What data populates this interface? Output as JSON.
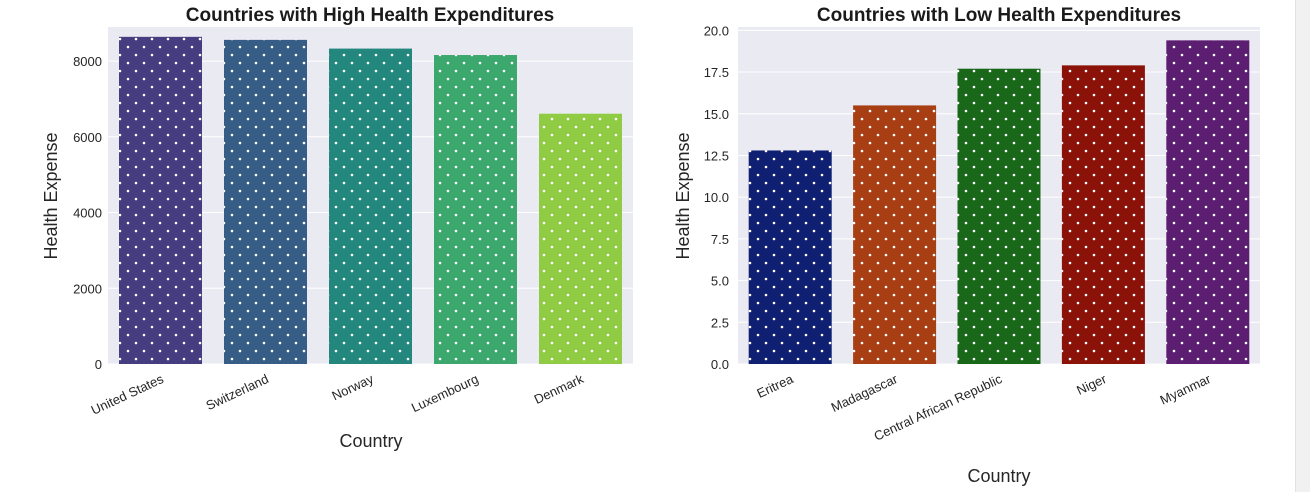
{
  "chart_data": [
    {
      "type": "bar",
      "title": "Countries with High Health Expenditures",
      "xlabel": "Country",
      "ylabel": "Health Expense",
      "categories": [
        "United States",
        "Switzerland",
        "Norway",
        "Luxembourg",
        "Denmark"
      ],
      "values": [
        8640,
        8560,
        8330,
        8160,
        6610
      ],
      "ylim": [
        0,
        8900
      ],
      "yticks": [
        0,
        2000,
        4000,
        6000,
        8000
      ],
      "ytick_labels": [
        "0",
        "2000",
        "4000",
        "6000",
        "8000"
      ],
      "colors": [
        "#463c80",
        "#365d85",
        "#23877e",
        "#3da86d",
        "#8fcb43"
      ],
      "grid": true,
      "pattern": "dots"
    },
    {
      "type": "bar",
      "title": "Countries with Low Health Expenditures",
      "xlabel": "Country",
      "ylabel": "Health Expense",
      "categories": [
        "Eritrea",
        "Madagascar",
        "Central African Republic",
        "Niger",
        "Myanmar"
      ],
      "values": [
        12.8,
        15.5,
        17.7,
        17.9,
        19.4
      ],
      "ylim": [
        0,
        20.2
      ],
      "yticks": [
        0,
        2.5,
        5,
        7.5,
        10,
        12.5,
        15,
        17.5,
        20
      ],
      "ytick_labels": [
        "0.0",
        "2.5",
        "5.0",
        "7.5",
        "10.0",
        "12.5",
        "15.0",
        "17.5",
        "20.0"
      ],
      "colors": [
        "#0f1f72",
        "#a83f14",
        "#196819",
        "#8b1208",
        "#5c1e71"
      ],
      "grid": true,
      "pattern": "dots"
    }
  ]
}
